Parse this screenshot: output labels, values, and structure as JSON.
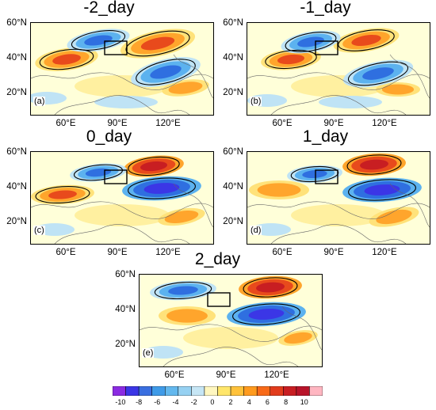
{
  "panels": [
    {
      "id": "a",
      "title": "-2_day",
      "letter": "(a)"
    },
    {
      "id": "b",
      "title": "-1_day",
      "letter": "(b)"
    },
    {
      "id": "c",
      "title": "0_day",
      "letter": "(c)"
    },
    {
      "id": "d",
      "title": "1_day",
      "letter": "(d)"
    },
    {
      "id": "e",
      "title": "2_day",
      "letter": "(e)"
    }
  ],
  "lat_labels": [
    "60°N",
    "40°N",
    "20°N"
  ],
  "lon_labels": [
    "60°E",
    "90°E",
    "120°E"
  ],
  "colorbar": {
    "ticks": [
      "-10",
      "-8",
      "-6",
      "-4",
      "-2",
      "0",
      "2",
      "4",
      "6",
      "8",
      "10"
    ],
    "colors": [
      "#8b2be2",
      "#3b36e6",
      "#3a6fe0",
      "#3f9be8",
      "#63b8ee",
      "#96d1f2",
      "#c6e6f5",
      "#fff7c0",
      "#ffe66a",
      "#ffc23a",
      "#ff9b1e",
      "#f86a18",
      "#e23c1c",
      "#c81e22",
      "#b8142a",
      "#ffb6c1"
    ]
  },
  "colors": {
    "warm_strong": "#e84a1c",
    "warm_mid": "#ffa52c",
    "warm_light": "#ffe27a",
    "cool_strong": "#2f6fe0",
    "cool_mid": "#5cb2ef",
    "cool_light": "#bfe3f5",
    "background": "#ffffd9"
  }
}
